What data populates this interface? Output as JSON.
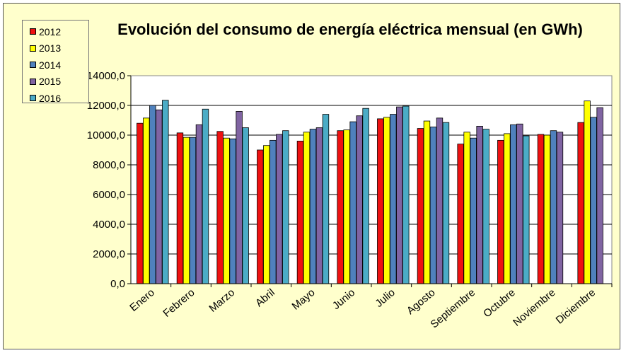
{
  "chart_data": {
    "type": "bar",
    "title": "Evolución del consumo de energía eléctrica mensual (en GWh)",
    "xlabel": "",
    "ylabel": "",
    "ylim": [
      0,
      14000
    ],
    "yticks": [
      "0,0",
      "2000,0",
      "4000,0",
      "6000,0",
      "8000,0",
      "10000,0",
      "12000,0",
      "14000,0"
    ],
    "categories": [
      "Enero",
      "Febrero",
      "Marzo",
      "Abril",
      "Mayo",
      "Junio",
      "Julio",
      "Agosto",
      "Septiembre",
      "Octubre",
      "Noviembre",
      "Diciembre"
    ],
    "grid": true,
    "legend_position": "top-left",
    "series": [
      {
        "name": "2012",
        "color": "#ee1111",
        "values": [
          10800,
          10150,
          10250,
          9000,
          9600,
          10300,
          11100,
          10450,
          9400,
          9650,
          10050,
          10850
        ]
      },
      {
        "name": "2013",
        "color": "#ffff00",
        "values": [
          11150,
          9850,
          9800,
          9300,
          10200,
          10350,
          11200,
          10950,
          10200,
          10100,
          10000,
          12300
        ]
      },
      {
        "name": "2014",
        "color": "#4f81bd",
        "values": [
          12000,
          9850,
          9750,
          9650,
          10400,
          10900,
          11400,
          10550,
          9800,
          10700,
          10300,
          11200
        ]
      },
      {
        "name": "2015",
        "color": "#8064a2",
        "values": [
          11700,
          10700,
          11600,
          10050,
          10500,
          11300,
          11900,
          11150,
          10600,
          10750,
          10200,
          11850
        ]
      },
      {
        "name": "2016",
        "color": "#4bacc6",
        "values": [
          12350,
          11750,
          10500,
          10300,
          11400,
          11800,
          11950,
          10850,
          10400,
          9950,
          null,
          null
        ]
      }
    ]
  }
}
